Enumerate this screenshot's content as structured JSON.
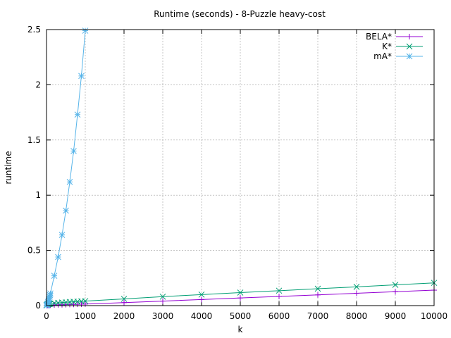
{
  "chart_data": {
    "type": "line",
    "title": "Runtime (seconds) - 8-Puzzle heavy-cost",
    "xlabel": "k",
    "ylabel": "runtime",
    "xlim": [
      0,
      10000
    ],
    "ylim": [
      0,
      2.5
    ],
    "x_ticks": [
      0,
      1000,
      2000,
      3000,
      4000,
      5000,
      6000,
      7000,
      8000,
      9000,
      10000
    ],
    "x_tick_labels": [
      "0",
      "1000",
      "2000",
      "3000",
      "4000",
      "5000",
      "6000",
      "7000",
      "8000",
      "9000",
      "10000"
    ],
    "y_ticks": [
      0,
      0.5,
      1,
      1.5,
      2,
      2.5
    ],
    "y_tick_labels": [
      "0",
      "0.5",
      "1",
      "1.5",
      "2",
      "2.5"
    ],
    "grid": true,
    "legend_position": "top-right",
    "series": [
      {
        "name": "BELA*",
        "color": "#9400d3",
        "marker": "plus",
        "x": [
          1,
          10,
          20,
          30,
          40,
          50,
          60,
          70,
          80,
          90,
          100,
          200,
          300,
          400,
          500,
          600,
          700,
          800,
          900,
          1000,
          2000,
          3000,
          4000,
          5000,
          6000,
          7000,
          8000,
          9000,
          10000
        ],
        "y": [
          0.002,
          0.002,
          0.003,
          0.003,
          0.003,
          0.004,
          0.004,
          0.004,
          0.004,
          0.005,
          0.005,
          0.006,
          0.007,
          0.008,
          0.009,
          0.01,
          0.011,
          0.012,
          0.013,
          0.014,
          0.027,
          0.041,
          0.055,
          0.069,
          0.083,
          0.097,
          0.112,
          0.126,
          0.14
        ]
      },
      {
        "name": "K*",
        "color": "#009e73",
        "marker": "cross",
        "x": [
          1,
          10,
          20,
          30,
          40,
          50,
          60,
          70,
          80,
          90,
          100,
          200,
          300,
          400,
          500,
          600,
          700,
          800,
          900,
          1000,
          2000,
          3000,
          4000,
          5000,
          6000,
          7000,
          8000,
          9000,
          10000
        ],
        "y": [
          0.005,
          0.008,
          0.01,
          0.012,
          0.013,
          0.014,
          0.015,
          0.016,
          0.017,
          0.018,
          0.018,
          0.022,
          0.025,
          0.028,
          0.03,
          0.033,
          0.035,
          0.037,
          0.039,
          0.041,
          0.061,
          0.081,
          0.1,
          0.118,
          0.135,
          0.153,
          0.17,
          0.188,
          0.206
        ]
      },
      {
        "name": "mA*",
        "color": "#56b4e9",
        "marker": "star",
        "x": [
          1,
          10,
          20,
          30,
          40,
          50,
          60,
          70,
          80,
          90,
          100,
          200,
          300,
          400,
          500,
          600,
          700,
          800,
          900,
          1000
        ],
        "y": [
          0.0,
          0.005,
          0.01,
          0.02,
          0.03,
          0.04,
          0.05,
          0.065,
          0.08,
          0.095,
          0.11,
          0.27,
          0.44,
          0.64,
          0.86,
          1.12,
          1.4,
          1.73,
          2.08,
          2.49
        ]
      }
    ]
  }
}
